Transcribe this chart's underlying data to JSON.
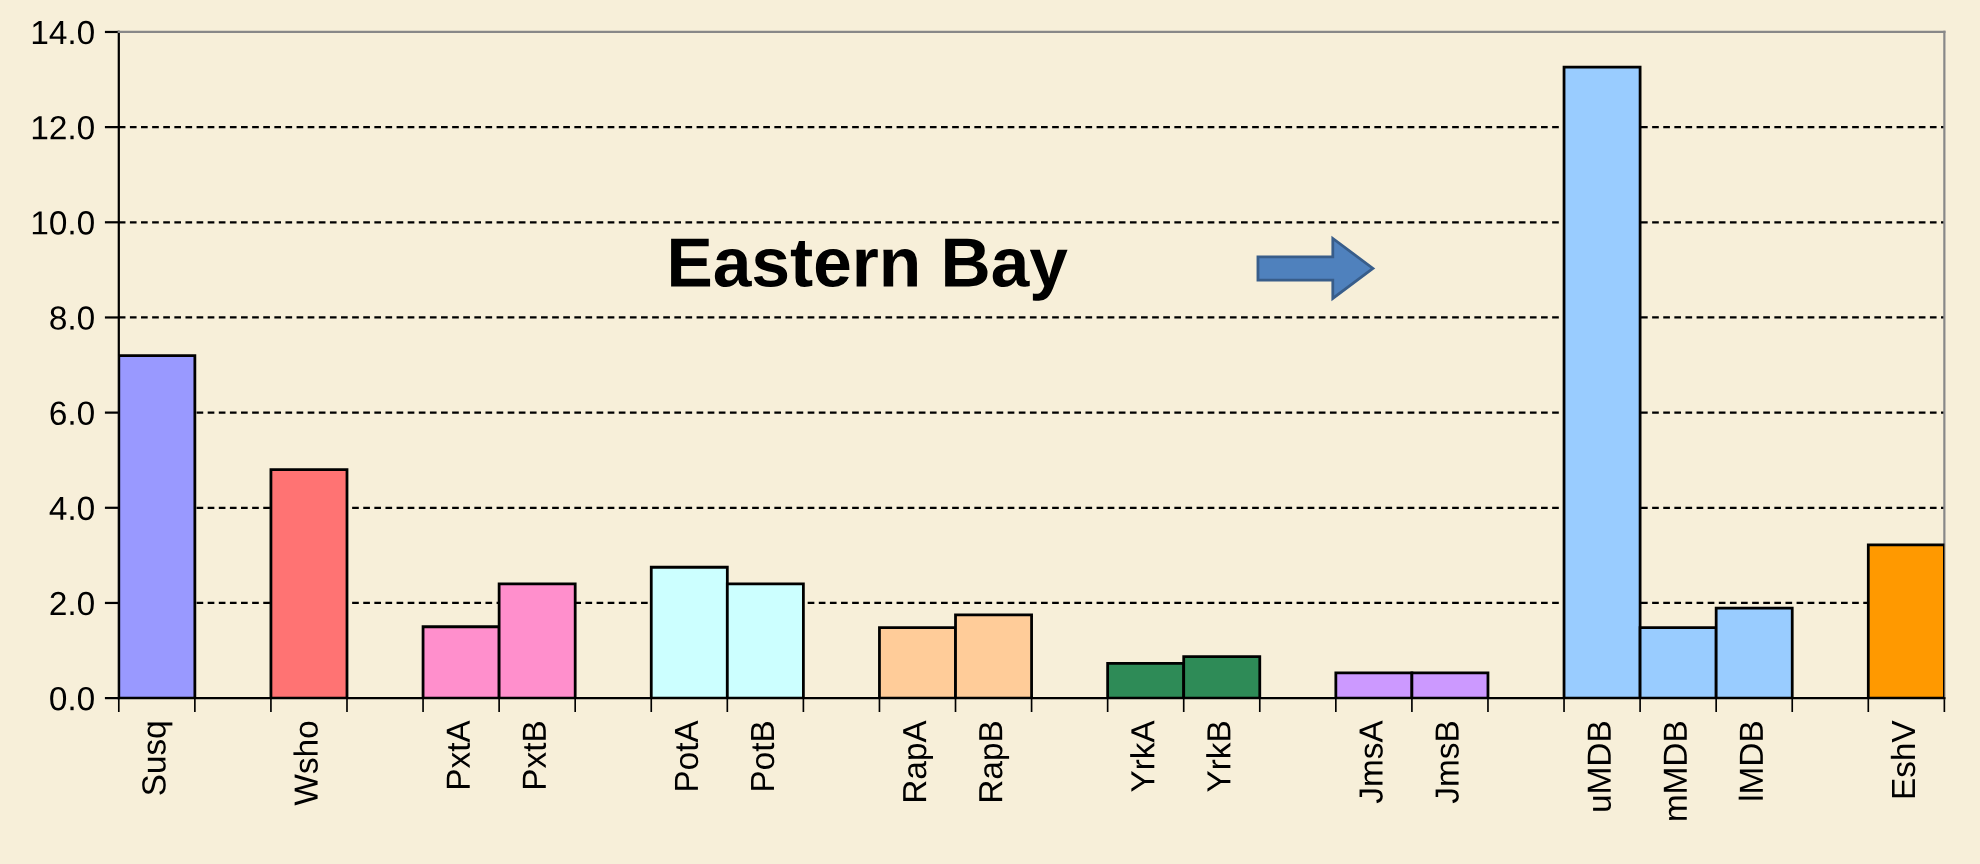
{
  "chart_data": {
    "type": "bar",
    "categories": [
      "Susq",
      null,
      "Wsho",
      null,
      "PxtA",
      "PxtB",
      null,
      "PotA",
      "PotB",
      null,
      "RapA",
      "RapB",
      null,
      "YrkA",
      "YrkB",
      null,
      "JmsA",
      "JmsB",
      null,
      "uMDB",
      "mMDB",
      "lMDB",
      null,
      "EshV"
    ],
    "values": [
      7.2,
      null,
      4.8,
      null,
      1.5,
      2.4,
      null,
      2.75,
      2.4,
      null,
      1.48,
      1.75,
      null,
      0.73,
      0.87,
      null,
      0.53,
      0.53,
      null,
      13.26,
      1.48,
      1.89,
      null,
      3.22
    ],
    "colors": [
      "#9999ff",
      "#ffffff",
      "#ff7373",
      "#ffffff",
      "#ff8fcc",
      "#ff8fcc",
      "#ffffff",
      "#ccffff",
      "#ccffff",
      "#ffffff",
      "#ffcc99",
      "#ffcc99",
      "#ffffff",
      "#2e8b57",
      "#2e8b57",
      "#ffffff",
      "#cc99ff",
      "#cc99ff",
      "#ffffff",
      "#99ccff",
      "#99ccff",
      "#99ccff",
      "#ffffff",
      "#ff9900"
    ],
    "ylim": [
      0,
      14
    ],
    "yticks": [
      {
        "value": 0,
        "label": "0.0"
      },
      {
        "value": 2,
        "label": "2.0"
      },
      {
        "value": 4,
        "label": "4.0"
      },
      {
        "value": 6,
        "label": "6.0"
      },
      {
        "value": 8,
        "label": "8.0"
      },
      {
        "value": 10,
        "label": "10.0"
      },
      {
        "value": 12,
        "label": "12.0"
      },
      {
        "value": 14,
        "label": "14.0"
      }
    ],
    "grid": "y",
    "annotations": [
      "Eastern Bay"
    ]
  }
}
